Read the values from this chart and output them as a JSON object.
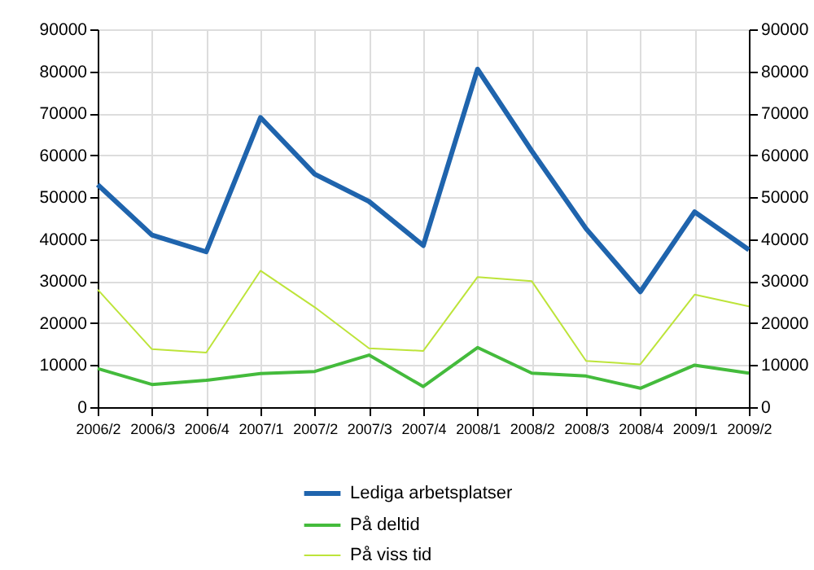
{
  "chart_data": {
    "type": "line",
    "categories": [
      "2006/2",
      "2006/3",
      "2006/4",
      "2007/1",
      "2007/2",
      "2007/3",
      "2007/4",
      "2008/1",
      "2008/2",
      "2008/3",
      "2008/4",
      "2009/1",
      "2009/2"
    ],
    "series": [
      {
        "name": "Lediga arbetsplatser",
        "color": "#1f64ad",
        "values": [
          53000,
          41000,
          37000,
          69000,
          55500,
          49000,
          38500,
          80500,
          61000,
          42500,
          27500,
          46500,
          37500
        ]
      },
      {
        "name": "På deltid",
        "color": "#44bb3c",
        "values": [
          9200,
          5400,
          6400,
          8000,
          8500,
          12400,
          4900,
          14200,
          8100,
          7400,
          4500,
          10000,
          8100
        ]
      },
      {
        "name": "På viss tid",
        "color": "#bde43a",
        "values": [
          28000,
          13800,
          13000,
          32500,
          23800,
          14000,
          13400,
          31000,
          30000,
          11000,
          10200,
          26800,
          24000
        ]
      }
    ],
    "ylim": [
      0,
      90000
    ],
    "yticks": [
      0,
      10000,
      20000,
      30000,
      40000,
      50000,
      60000,
      70000,
      80000,
      90000
    ],
    "y2lim": [
      0,
      90000
    ],
    "y2ticks": [
      0,
      10000,
      20000,
      30000,
      40000,
      50000,
      60000,
      70000,
      80000,
      90000
    ],
    "grid": true,
    "legend": "bottom",
    "marker": "none",
    "line_style": "solid"
  }
}
